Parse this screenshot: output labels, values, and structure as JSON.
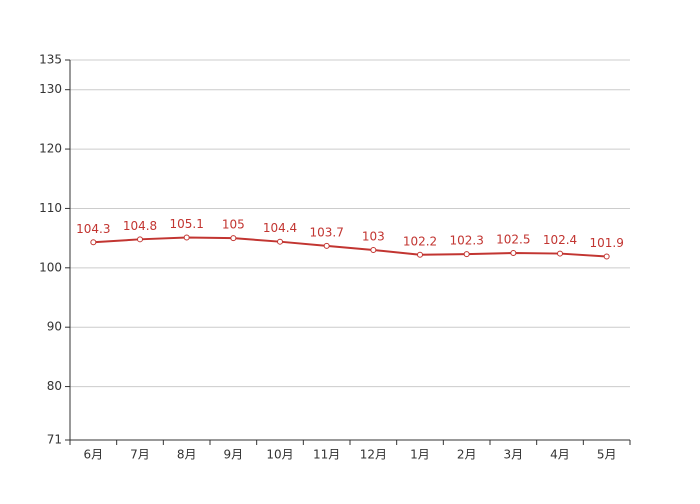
{
  "chart_data": {
    "type": "line",
    "categories": [
      "6月",
      "7月",
      "8月",
      "9月",
      "10月",
      "11月",
      "12月",
      "1月",
      "2月",
      "3月",
      "4月",
      "5月"
    ],
    "series": [
      {
        "color": "#c23531",
        "values": [
          104.3,
          104.8,
          105.1,
          105,
          104.4,
          103.7,
          103,
          102.2,
          102.3,
          102.5,
          102.4,
          101.9
        ]
      }
    ],
    "ylim": [
      71,
      135
    ],
    "yticks": [
      71,
      80,
      90,
      100,
      110,
      120,
      130,
      135
    ],
    "grid": true
  }
}
